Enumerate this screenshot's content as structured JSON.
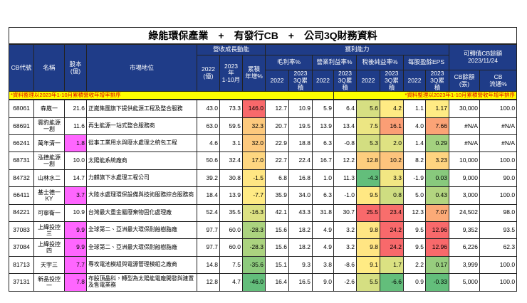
{
  "title": "綠能環保產業　+　有發行CB　+　公司3Q財務資料",
  "header": {
    "cb_code": "CB代號",
    "name": "名稱",
    "capital": "股本\n(億)",
    "market": "市場地位",
    "revenue_group": "營收成長動能",
    "rev_2022": "2022\n(億)",
    "rev_2023": "2023年\n1-10月",
    "rev_yoy": "累積\n年增%",
    "profit_group": "獲利能力",
    "metrics": [
      {
        "name": "毛利率%",
        "sub": [
          "2022",
          "2023\n3Q累積"
        ]
      },
      {
        "name": "營業利益率%",
        "sub": [
          "2022",
          "2023\n3Q累積"
        ]
      },
      {
        "name": "稅後純益率%",
        "sub": [
          "2022",
          "2023\n3Q累積"
        ]
      },
      {
        "name": "每股盈餘EPS",
        "sub": [
          "2022",
          "2023\n3Q累積"
        ]
      }
    ],
    "cb_group": "可轉債CB餘額\n2023/11/24",
    "cb_balance": "CB餘額\n(張)",
    "cb_float": "CB\n流通%"
  },
  "note": [
    "*資料整理以2023年1-10月累積營收年增率排序",
    "*資料整理以2023年1-10月累積營收年增率排序"
  ],
  "heatmap": {
    "columns": [
      6,
      11,
      12,
      14
    ],
    "low": "#63be7b",
    "mid": "#ffeb84",
    "high": "#f8696b"
  },
  "rows": [
    {
      "cells": [
        "68061",
        "森崴一",
        "21.6",
        "正崴集團旗下提供能源工程及整合服務",
        "43.0",
        "73.3",
        "146.0",
        "12.7",
        "10.9",
        "5.9",
        "6.4",
        "5.6",
        "4.2",
        "1.1",
        "1.17",
        "30,000",
        "100.0"
      ]
    },
    {
      "cells": [
        "68691",
        "雲豹能源一創",
        "11.6",
        "再生能源一站式整合服務商",
        "63.0",
        "59.5",
        "32.3",
        "20.7",
        "19.5",
        "13.9",
        "13.4",
        "7.5",
        "16.1",
        "4.0",
        "7.66",
        "#N/A",
        "#N/A"
      ]
    },
    {
      "cells": [
        "66241",
        "萬年清一",
        "1.8",
        "從事工業用水與廢水處理之統包工程",
        "4.6",
        "3.1",
        "32.0",
        "22.9",
        "18.8",
        "6.3",
        "-0.8",
        "5.3",
        "2.0",
        "1.4",
        "0.29",
        "#N/A",
        "#N/A"
      ],
      "capital_color": "#ff66ff"
    },
    {
      "cells": [
        "68731",
        "泓德能源一創",
        "10.0",
        "太陽能系統廠商",
        "50.6",
        "32.4",
        "17.0",
        "22.7",
        "22.4",
        "16.7",
        "12.2",
        "12.8",
        "10.2",
        "8.2",
        "3.23",
        "10,000",
        "100.0"
      ]
    },
    {
      "cells": [
        "84732",
        "山林水二",
        "14.7",
        "力麒旗下水處理工程公司",
        "39.2",
        "30.8",
        "-1.5",
        "6.8",
        "16.8",
        "1.0",
        "11.3",
        "-4.3",
        "3.3",
        "-1.9",
        "0.03",
        "9,000",
        "90.0"
      ]
    },
    {
      "cells": [
        "66411",
        "基士德一KY",
        "3.7",
        "大陸水處理環保設備與技術服務綜合服務商",
        "18.4",
        "13.9",
        "-7.7",
        "35.9",
        "34.0",
        "6.3",
        "-1.0",
        "9.5",
        "0.8",
        "5.0",
        "0.43",
        "3,000",
        "100.0"
      ],
      "capital_color": "#ff66ff"
    },
    {
      "cells": [
        "84221",
        "可寧衛一",
        "10.9",
        "台灣最大重金屬廢棄物固化處理廠",
        "52.4",
        "35.5",
        "-16.3",
        "42.1",
        "43.3",
        "31.8",
        "30.7",
        "25.5",
        "23.4",
        "12.3",
        "7.07",
        "24,502",
        "98.0"
      ]
    },
    {
      "cells": [
        "37083",
        "上緯投控三",
        "9.9",
        "全球第二、亞洲最大環保耐蝕樹脂廠",
        "97.7",
        "60.0",
        "-28.3",
        "15.6",
        "18.2",
        "4.9",
        "3.2",
        "9.8",
        "24.2",
        "9.5",
        "12.96",
        "9,352",
        "93.5"
      ],
      "capital_color": "#ff66ff"
    },
    {
      "cells": [
        "37084",
        "上緯投控四",
        "9.9",
        "全球第二、亞洲最大環保耐蝕樹脂廠",
        "97.7",
        "60.0",
        "-28.3",
        "15.6",
        "18.2",
        "4.9",
        "3.2",
        "9.8",
        "24.2",
        "9.5",
        "12.96",
        "6,226",
        "62.3"
      ],
      "capital_color": "#ff66ff"
    },
    {
      "cells": [
        "81713",
        "天宇三",
        "7.7",
        "專攻電池模組與電源管理模組之廠商",
        "14.8",
        "7.5",
        "-35.6",
        "15.1",
        "9.3",
        "3.8",
        "-8.6",
        "9.1",
        "1.7",
        "2.2",
        "0.17",
        "3,999",
        "100.0"
      ],
      "capital_color": "#ff66ff"
    },
    {
      "cells": [
        "37131",
        "新晶投控一",
        "7.8",
        "布股頂晶科，轉型為太陽能電廠開發與建置及售電業務",
        "12.8",
        "4.7",
        "-46.0",
        "16.4",
        "16.5",
        "9.0",
        "-2.6",
        "5.5",
        "-6.6",
        "0.9",
        "-0.33",
        "5,000",
        "100.0"
      ],
      "capital_color": "#ff66ff"
    }
  ]
}
